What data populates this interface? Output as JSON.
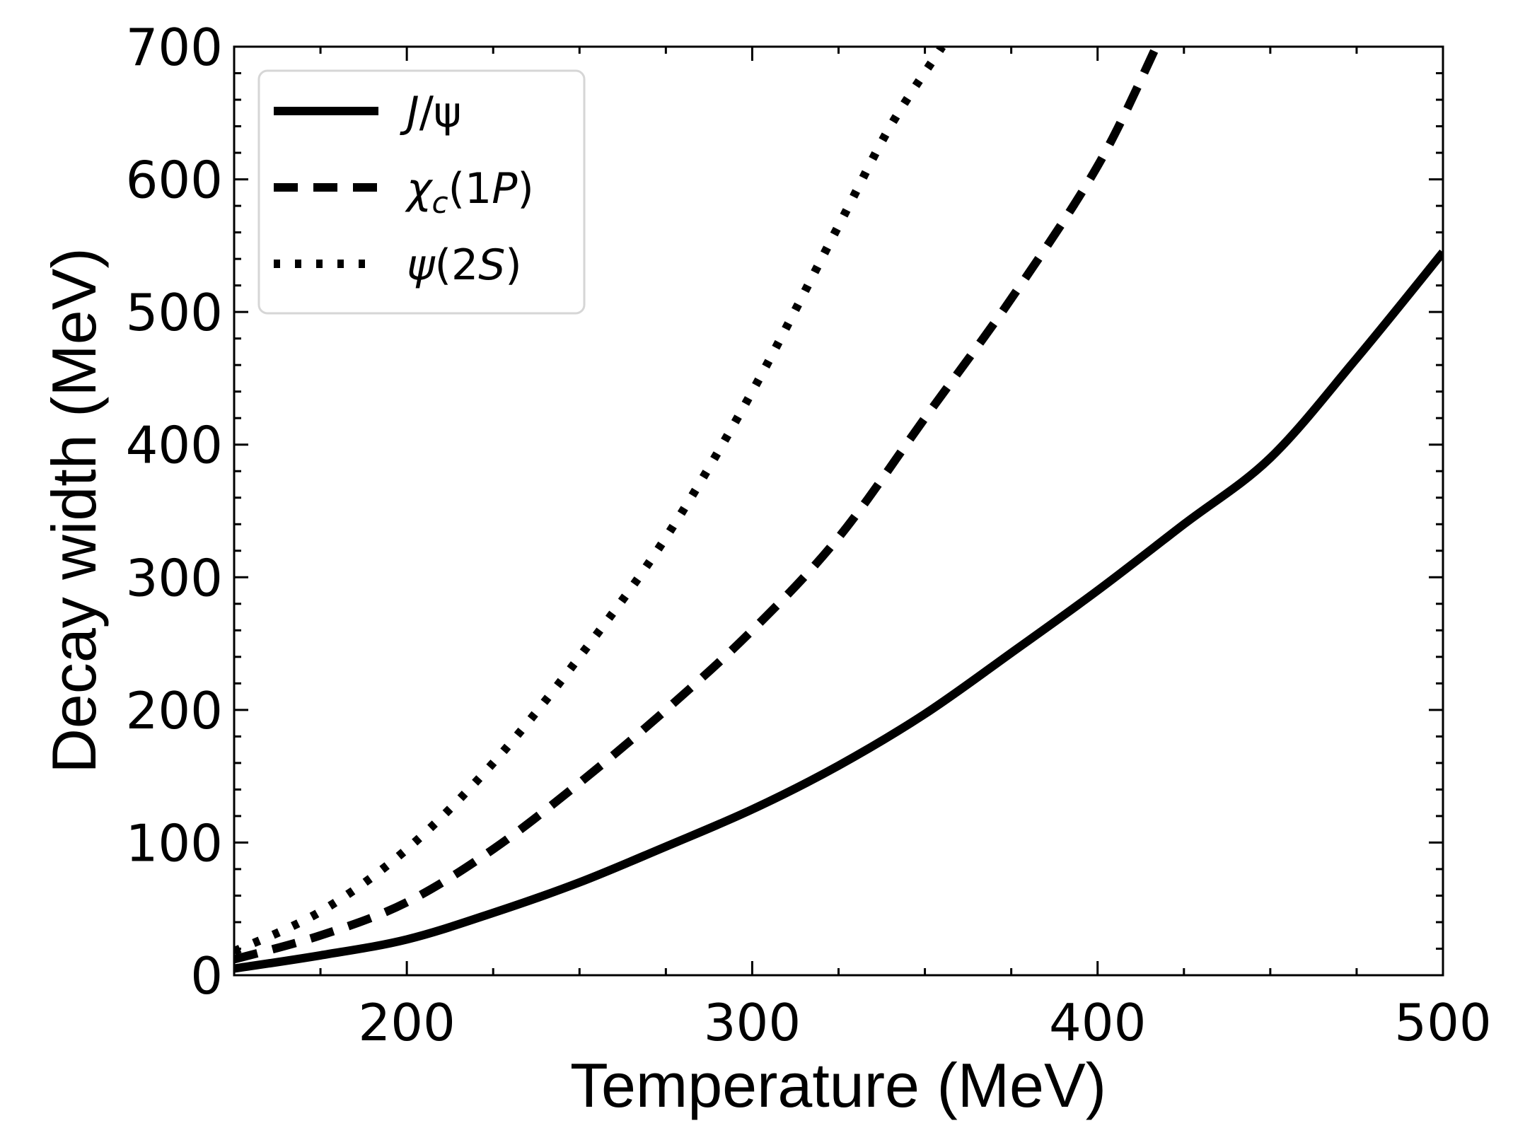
{
  "chart_data": {
    "type": "line",
    "title": "",
    "xlabel": "Temperature (MeV)",
    "ylabel": "Decay width (MeV)",
    "xlim": [
      150,
      500
    ],
    "ylim": [
      0,
      700
    ],
    "x_major_ticks": [
      200,
      300,
      400,
      500
    ],
    "y_major_ticks": [
      0,
      100,
      200,
      300,
      400,
      500,
      600,
      700
    ],
    "x_tick_labels": [
      "200",
      "300",
      "400",
      "500"
    ],
    "y_tick_labels": [
      "0",
      "100",
      "200",
      "300",
      "400",
      "500",
      "600",
      "700"
    ],
    "grid": false,
    "legend_position": "top-left",
    "series": [
      {
        "name": "J/ψ",
        "legend_parts": {
          "italic": "J",
          "rest": "/ψ"
        },
        "style": "solid",
        "color": "#000000",
        "x": [
          150,
          175,
          200,
          225,
          250,
          275,
          300,
          325,
          350,
          375,
          400,
          425,
          450,
          475,
          500
        ],
        "y": [
          5,
          15,
          27,
          47,
          70,
          97,
          125,
          158,
          197,
          243,
          290,
          340,
          390,
          465,
          545
        ]
      },
      {
        "name": "χc(1P)",
        "legend_parts": {
          "italic": "χ",
          "sub": "c",
          "rest": "(1",
          "italic2": "P",
          "end": ")"
        },
        "style": "dashed",
        "color": "#000000",
        "x": [
          150,
          175,
          200,
          225,
          250,
          275,
          300,
          325,
          350,
          375,
          400,
          417
        ],
        "y": [
          12,
          30,
          55,
          95,
          145,
          200,
          260,
          330,
          420,
          510,
          610,
          700
        ]
      },
      {
        "name": "ψ(2S)",
        "legend_parts": {
          "italic": "ψ",
          "rest": "(2",
          "italic2": "S",
          "end": ")"
        },
        "style": "dotted",
        "color": "#000000",
        "x": [
          150,
          175,
          200,
          225,
          250,
          275,
          300,
          325,
          340,
          355
        ],
        "y": [
          18,
          48,
          95,
          160,
          240,
          330,
          440,
          565,
          640,
          700
        ]
      }
    ]
  }
}
